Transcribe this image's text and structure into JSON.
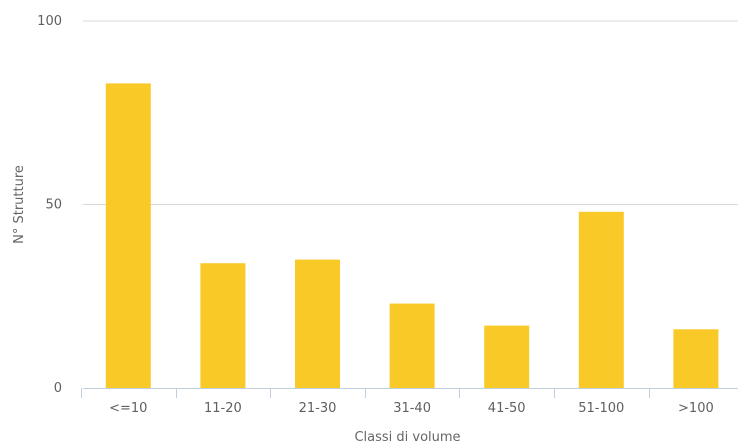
{
  "chart_data": {
    "type": "bar",
    "title": "",
    "xlabel": "Classi di volume",
    "ylabel": "N° Strutture",
    "categories": [
      "<=10",
      "11-20",
      "21-30",
      "31-40",
      "41-50",
      "51-100",
      ">100"
    ],
    "values": [
      83,
      34,
      35,
      23,
      17,
      48,
      16
    ],
    "ylim": [
      0,
      100
    ],
    "yticks": [
      0,
      50,
      100
    ],
    "grid": true,
    "legend": "none",
    "colors": {
      "bar": "#f9c928",
      "grid": "#d8d8d8",
      "axis": "#c0d0e0",
      "tick_text": "#606060",
      "axis_title": "#666666"
    }
  }
}
